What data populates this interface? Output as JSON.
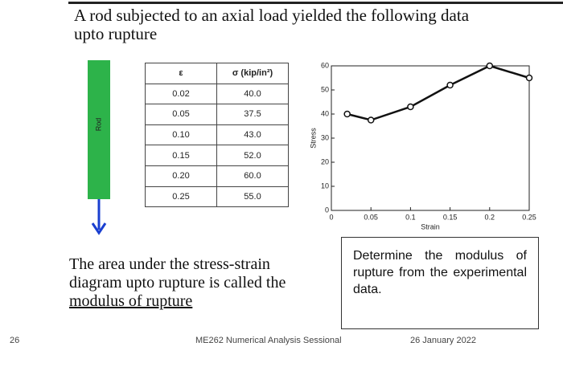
{
  "slide": {
    "title_lines": [
      "A rod subjected to an axial load yielded the following data",
      "upto rupture"
    ],
    "rod_label": "Rod",
    "paragraph_lines": [
      "The area under the stress-strain",
      "diagram upto rupture is called the",
      "modulus of rupture"
    ],
    "box_text": "Determine the modulus of rupture from the experimental data.",
    "footer": {
      "page": "26",
      "course": "ME262 Numerical Analysis Sessional",
      "date": "26 January 2022"
    }
  },
  "table": {
    "header": [
      "ε",
      "σ (kip/in²)"
    ],
    "rows": [
      [
        "0.02",
        "40.0"
      ],
      [
        "0.05",
        "37.5"
      ],
      [
        "0.10",
        "43.0"
      ],
      [
        "0.15",
        "52.0"
      ],
      [
        "0.20",
        "60.0"
      ],
      [
        "0.25",
        "55.0"
      ]
    ]
  },
  "chart_data": {
    "type": "line",
    "xlabel": "Strain",
    "ylabel": "Stress",
    "x": [
      0.02,
      0.05,
      0.1,
      0.15,
      0.2,
      0.25
    ],
    "values": [
      40,
      37.5,
      43,
      52,
      60,
      55
    ],
    "color": "#111111",
    "xlim": [
      0,
      0.25
    ],
    "xticks": [
      0,
      0.05,
      0.1,
      0.15,
      0.2,
      0.25
    ],
    "ylim": [
      0,
      60
    ],
    "yticks": [
      0,
      10,
      20,
      30,
      40,
      50,
      60
    ]
  }
}
